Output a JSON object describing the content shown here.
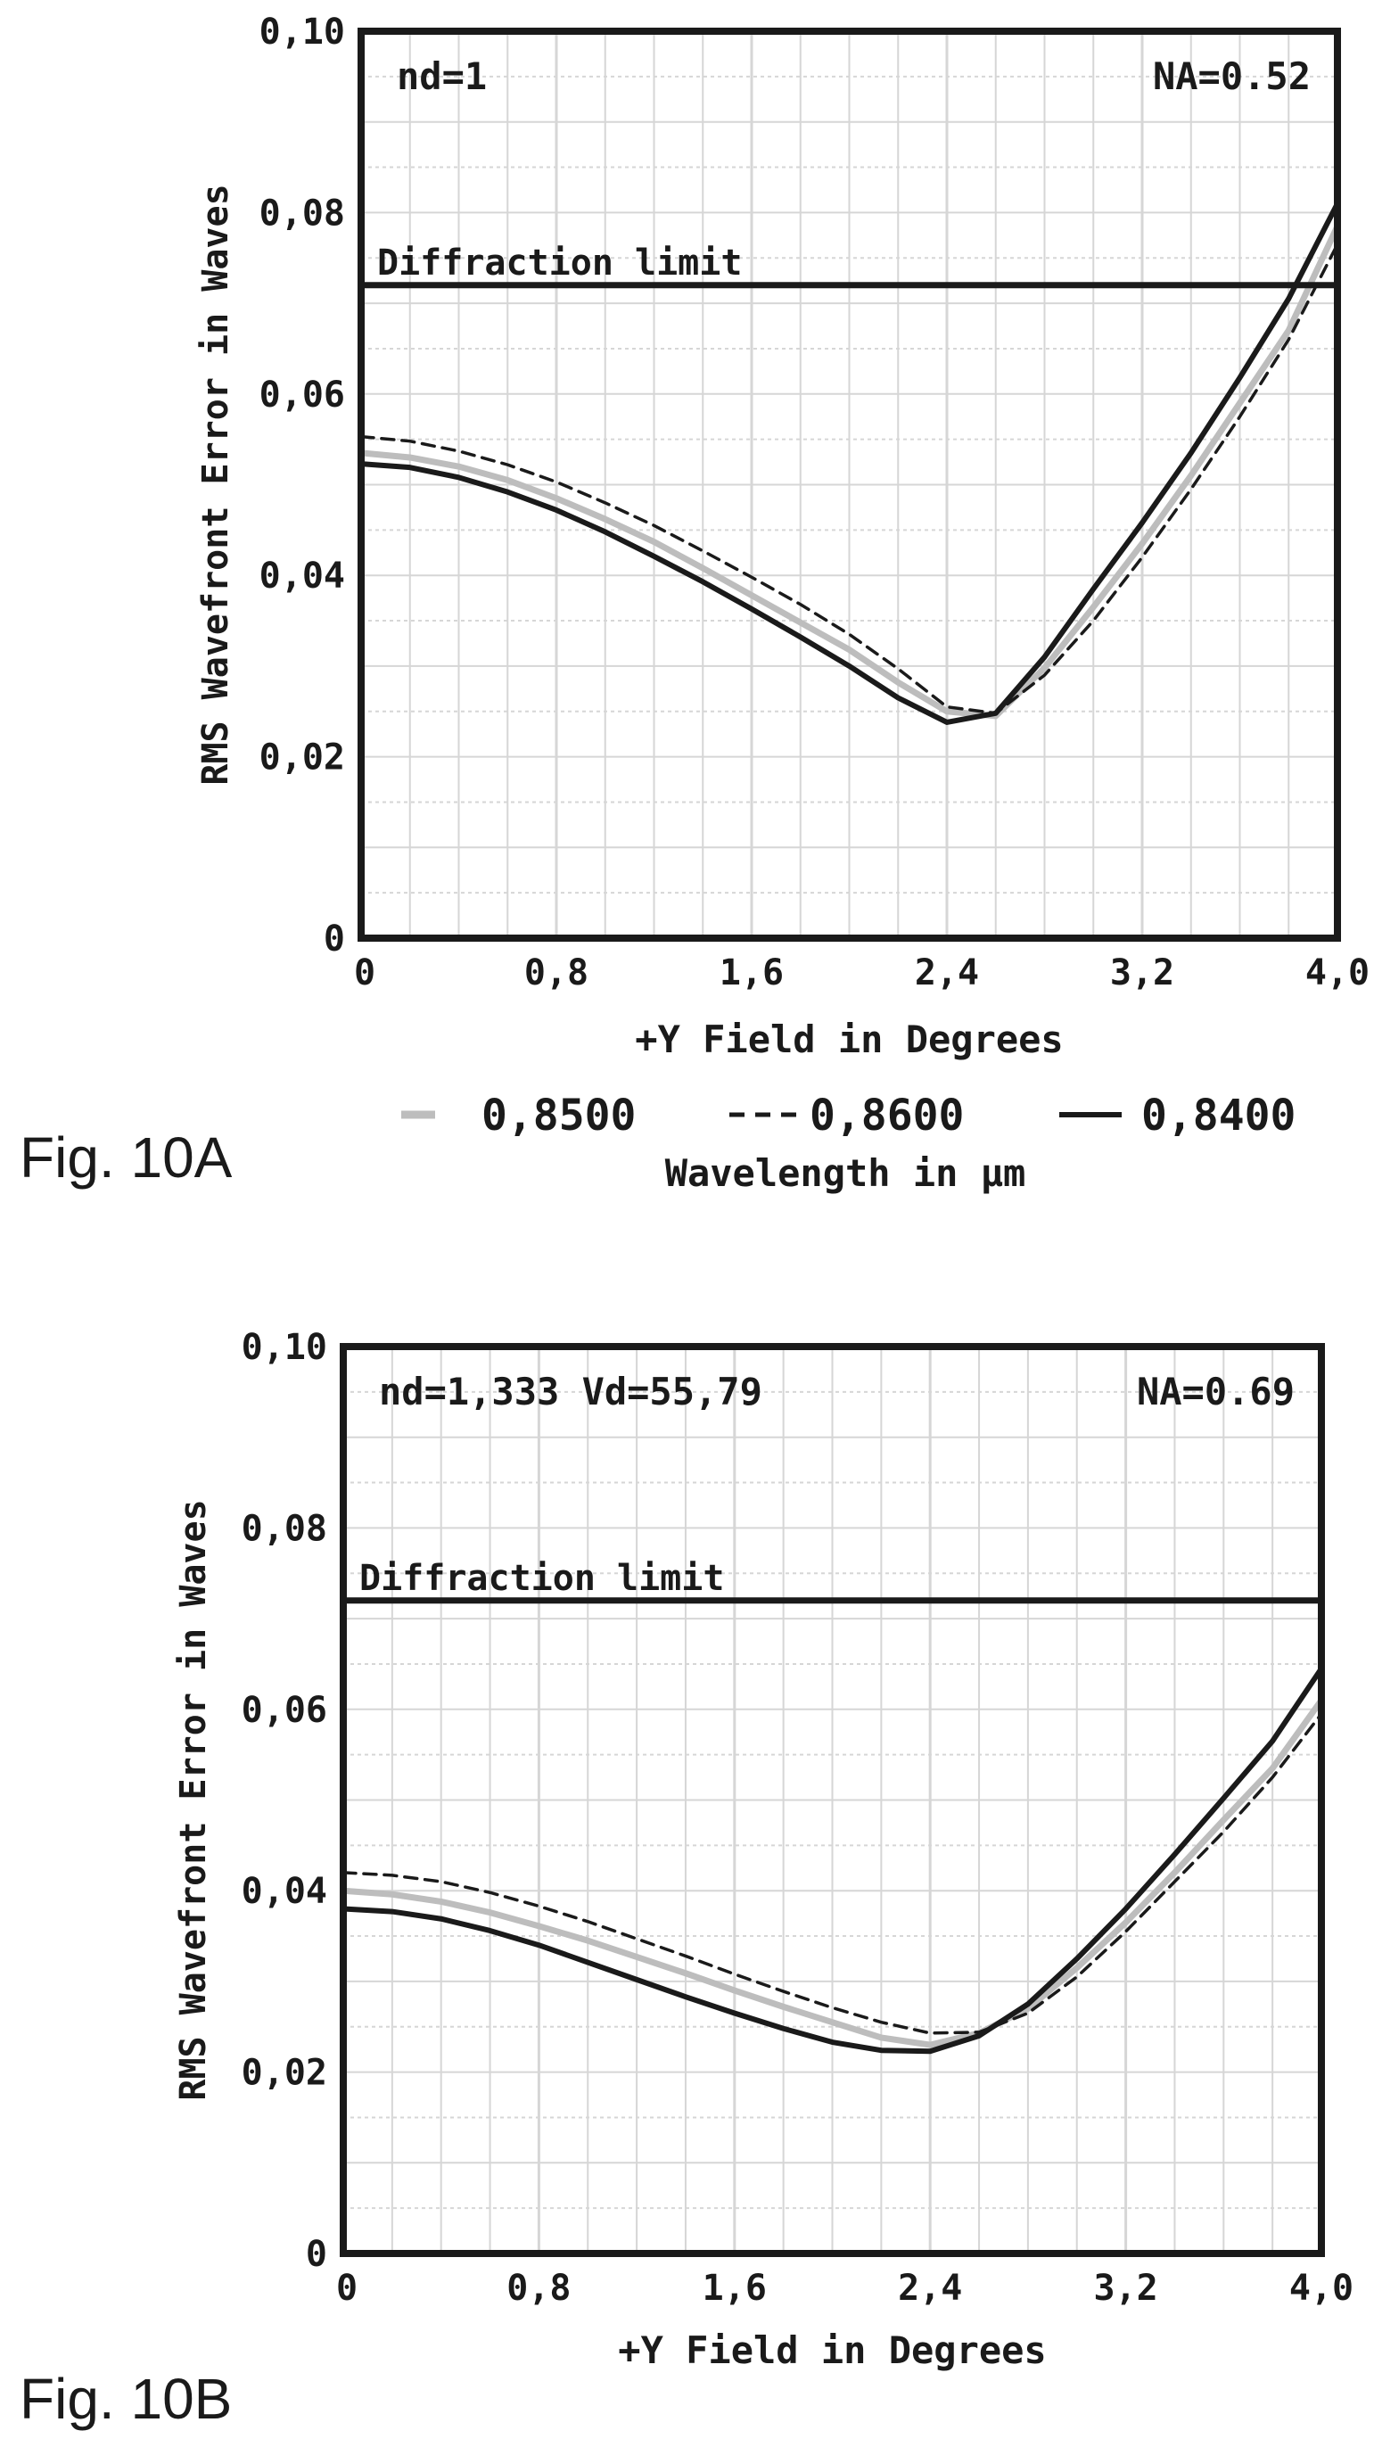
{
  "figures": [
    {
      "caption": "Fig. 10A",
      "annotation_left": "nd=1",
      "annotation_right": "NA=0.52"
    },
    {
      "caption": "Fig. 10B",
      "annotation_left": "nd=1,333 Vd=55,79",
      "annotation_right": "NA=0.69"
    }
  ],
  "legend": {
    "items": [
      {
        "label": "0,8500",
        "style": "gray"
      },
      {
        "label": "0,8600",
        "style": "dashed"
      },
      {
        "label": "0,8400",
        "style": "solid"
      }
    ],
    "title": "Wavelength in µm"
  },
  "colors": {
    "solid": "#1a1a1a",
    "gray": "#bdbdbd",
    "dashed": "#1a1a1a",
    "grid": "#d6d6d6",
    "frame": "#1a1a1a"
  },
  "chart_data": [
    {
      "type": "line",
      "xlabel": "+Y Field in Degrees",
      "ylabel": "RMS Wavefront Error in Waves",
      "xlim": [
        0,
        4.0
      ],
      "ylim": [
        0,
        0.1
      ],
      "xticks": [
        "0",
        "0,8",
        "1,6",
        "2,4",
        "3,2",
        "4,0"
      ],
      "yticks": [
        "0",
        "0,02",
        "0,04",
        "0,06",
        "0,08",
        "0,10"
      ],
      "reference_line": {
        "label": "Diffraction limit",
        "y": 0.072
      },
      "x": [
        0,
        0.2,
        0.4,
        0.6,
        0.8,
        1.0,
        1.2,
        1.4,
        1.6,
        1.8,
        2.0,
        2.2,
        2.4,
        2.6,
        2.8,
        3.0,
        3.2,
        3.4,
        3.6,
        3.8,
        4.0
      ],
      "series": [
        {
          "name": "0,8500",
          "style": "gray",
          "values": [
            0.0535,
            0.053,
            0.052,
            0.0505,
            0.0485,
            0.0462,
            0.0437,
            0.0408,
            0.0378,
            0.0348,
            0.0318,
            0.0282,
            0.025,
            0.0245,
            0.0298,
            0.0365,
            0.0435,
            0.051,
            0.059,
            0.067,
            0.0785
          ]
        },
        {
          "name": "0,8600",
          "style": "dashed",
          "values": [
            0.0553,
            0.0548,
            0.0537,
            0.0522,
            0.0503,
            0.048,
            0.0455,
            0.0427,
            0.0398,
            0.0368,
            0.0335,
            0.0297,
            0.0255,
            0.0248,
            0.029,
            0.035,
            0.042,
            0.0495,
            0.0575,
            0.066,
            0.0765
          ]
        },
        {
          "name": "0,8400",
          "style": "solid",
          "values": [
            0.0523,
            0.0519,
            0.0508,
            0.0492,
            0.0472,
            0.0448,
            0.0421,
            0.0393,
            0.0363,
            0.0332,
            0.03,
            0.0265,
            0.0238,
            0.0248,
            0.031,
            0.0385,
            0.0458,
            0.0535,
            0.0618,
            0.0705,
            0.081
          ]
        }
      ]
    },
    {
      "type": "line",
      "xlabel": "+Y Field in Degrees",
      "ylabel": "RMS Wavefront Error in Waves",
      "xlim": [
        0,
        4.0
      ],
      "ylim": [
        0,
        0.1
      ],
      "xticks": [
        "0",
        "0,8",
        "1,6",
        "2,4",
        "3,2",
        "4,0"
      ],
      "yticks": [
        "0",
        "0,02",
        "0,04",
        "0,06",
        "0,08",
        "0,10"
      ],
      "reference_line": {
        "label": "Diffraction limit",
        "y": 0.072
      },
      "x": [
        0,
        0.2,
        0.4,
        0.6,
        0.8,
        1.0,
        1.2,
        1.4,
        1.6,
        1.8,
        2.0,
        2.2,
        2.4,
        2.6,
        2.8,
        3.0,
        3.2,
        3.4,
        3.6,
        3.8,
        4.0
      ],
      "series": [
        {
          "name": "0,8500",
          "style": "gray",
          "values": [
            0.04,
            0.0396,
            0.0388,
            0.0376,
            0.0361,
            0.0345,
            0.0327,
            0.0309,
            0.029,
            0.0272,
            0.0255,
            0.0238,
            0.023,
            0.0243,
            0.027,
            0.0315,
            0.0365,
            0.042,
            0.0478,
            0.0535,
            0.061
          ]
        },
        {
          "name": "0,8600",
          "style": "dashed",
          "values": [
            0.042,
            0.0417,
            0.041,
            0.0398,
            0.0383,
            0.0366,
            0.0347,
            0.0328,
            0.0308,
            0.0289,
            0.0271,
            0.0255,
            0.0243,
            0.0244,
            0.0265,
            0.0305,
            0.0355,
            0.041,
            0.0465,
            0.0525,
            0.0595
          ]
        },
        {
          "name": "0,8400",
          "style": "solid",
          "values": [
            0.038,
            0.0377,
            0.0369,
            0.0356,
            0.034,
            0.0321,
            0.0302,
            0.0283,
            0.0265,
            0.0248,
            0.0233,
            0.0224,
            0.0223,
            0.024,
            0.0275,
            0.0325,
            0.038,
            0.044,
            0.0502,
            0.0565,
            0.0645
          ]
        }
      ]
    }
  ]
}
